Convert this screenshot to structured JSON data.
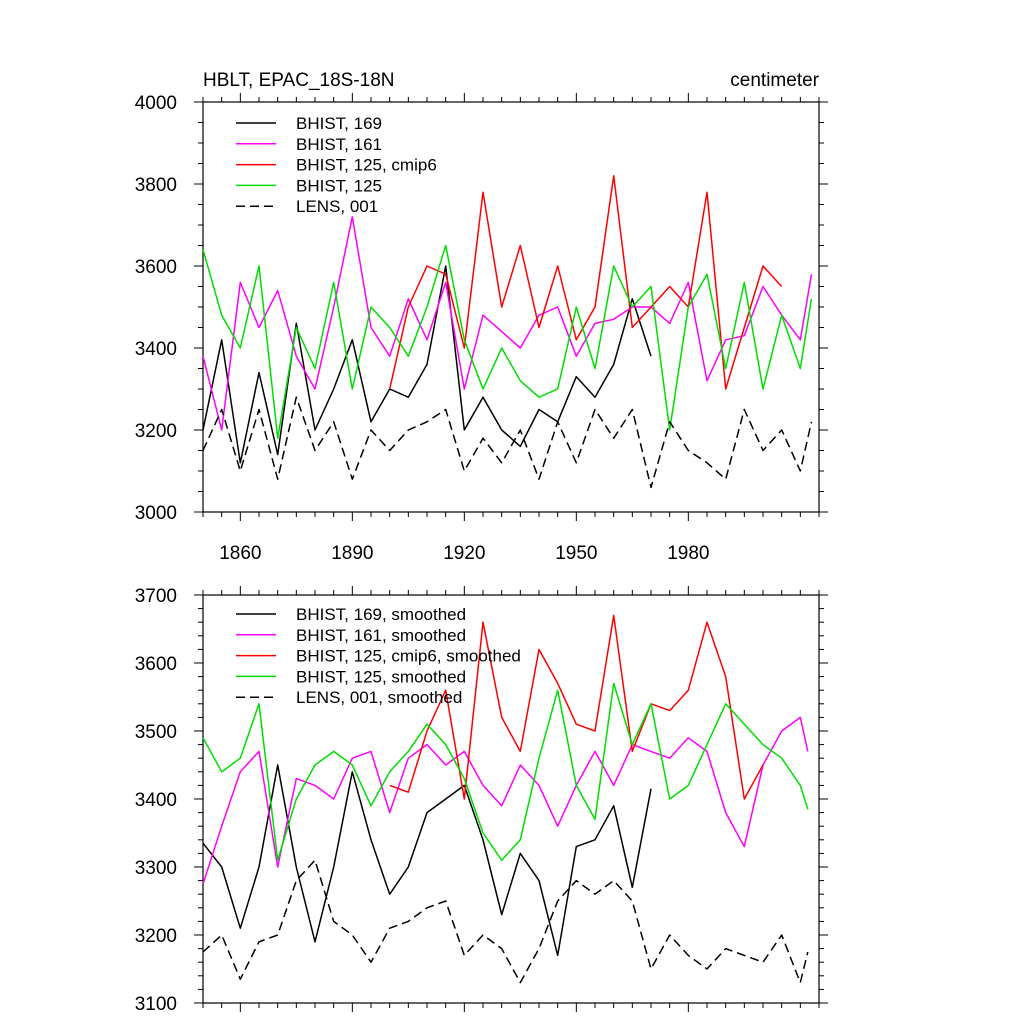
{
  "chart_data": [
    {
      "type": "line",
      "title": "HBLT, EPAC_18S-18N",
      "units_label": "centimeter",
      "xlim": [
        1850,
        2015
      ],
      "ylim": [
        3000,
        4000
      ],
      "x_major_ticks": [
        1860,
        1890,
        1920,
        1950,
        1980
      ],
      "y_major_ticks": [
        3000,
        3200,
        3400,
        3600,
        3800,
        4000
      ],
      "tick_labels_x": [
        "1860",
        "1890",
        "1920",
        "1950",
        "1980"
      ],
      "tick_labels_y": [
        "3000",
        "3200",
        "3400",
        "3600",
        "3800",
        "4000"
      ],
      "legend_position": "top-left",
      "series": [
        {
          "name": "BHIST, 169",
          "color": "#000000",
          "dash": "solid",
          "x": [
            1850,
            1855,
            1860,
            1865,
            1870,
            1875,
            1880,
            1885,
            1890,
            1895,
            1900,
            1905,
            1910,
            1915,
            1920,
            1925,
            1930,
            1935,
            1940,
            1945,
            1950,
            1955,
            1960,
            1965,
            1970
          ],
          "values": [
            3200,
            3420,
            3120,
            3340,
            3140,
            3460,
            3200,
            3300,
            3420,
            3220,
            3300,
            3280,
            3360,
            3600,
            3200,
            3280,
            3200,
            3160,
            3250,
            3220,
            3330,
            3280,
            3360,
            3520,
            3380
          ]
        },
        {
          "name": "BHIST, 161",
          "color": "#ff00ff",
          "dash": "solid",
          "x": [
            1850,
            1855,
            1860,
            1865,
            1870,
            1875,
            1880,
            1885,
            1890,
            1895,
            1900,
            1905,
            1910,
            1915,
            1920,
            1925,
            1930,
            1935,
            1940,
            1945,
            1950,
            1955,
            1960,
            1965,
            1970,
            1975,
            1980,
            1985,
            1990,
            1995,
            2000,
            2005,
            2010,
            2013
          ],
          "values": [
            3380,
            3200,
            3560,
            3450,
            3540,
            3380,
            3300,
            3500,
            3720,
            3450,
            3380,
            3520,
            3420,
            3560,
            3300,
            3480,
            3440,
            3400,
            3480,
            3500,
            3380,
            3460,
            3470,
            3500,
            3500,
            3460,
            3560,
            3320,
            3420,
            3430,
            3550,
            3480,
            3420,
            3580
          ]
        },
        {
          "name": "BHIST, 125, cmip6",
          "color": "#ff0000",
          "dash": "solid",
          "x": [
            1900,
            1905,
            1910,
            1915,
            1920,
            1925,
            1930,
            1935,
            1940,
            1945,
            1950,
            1955,
            1960,
            1965,
            1970,
            1975,
            1980,
            1985,
            1990,
            1995,
            2000,
            2005
          ],
          "values": [
            3300,
            3500,
            3600,
            3580,
            3400,
            3780,
            3500,
            3650,
            3450,
            3600,
            3420,
            3500,
            3820,
            3450,
            3500,
            3550,
            3500,
            3780,
            3300,
            3450,
            3600,
            3550
          ]
        },
        {
          "name": "BHIST, 125",
          "color": "#00dd00",
          "dash": "solid",
          "x": [
            1850,
            1855,
            1860,
            1865,
            1870,
            1875,
            1880,
            1885,
            1890,
            1895,
            1900,
            1905,
            1910,
            1915,
            1920,
            1925,
            1930,
            1935,
            1940,
            1945,
            1950,
            1955,
            1960,
            1965,
            1970,
            1975,
            1980,
            1985,
            1990,
            1995,
            2000,
            2005,
            2010,
            2013
          ],
          "values": [
            3640,
            3480,
            3400,
            3600,
            3180,
            3450,
            3350,
            3560,
            3300,
            3500,
            3450,
            3380,
            3500,
            3650,
            3420,
            3300,
            3400,
            3320,
            3280,
            3300,
            3500,
            3350,
            3600,
            3500,
            3550,
            3200,
            3500,
            3580,
            3350,
            3560,
            3300,
            3480,
            3350,
            3520
          ]
        },
        {
          "name": "LENS, 001",
          "color": "#000000",
          "dash": "dashed",
          "x": [
            1850,
            1855,
            1860,
            1865,
            1870,
            1875,
            1880,
            1885,
            1890,
            1895,
            1900,
            1905,
            1910,
            1915,
            1920,
            1925,
            1930,
            1935,
            1940,
            1945,
            1950,
            1955,
            1960,
            1965,
            1970,
            1975,
            1980,
            1985,
            1990,
            1995,
            2000,
            2005,
            2010,
            2013
          ],
          "values": [
            3150,
            3250,
            3100,
            3250,
            3080,
            3280,
            3150,
            3220,
            3080,
            3200,
            3150,
            3200,
            3220,
            3250,
            3100,
            3180,
            3120,
            3200,
            3080,
            3220,
            3120,
            3250,
            3180,
            3250,
            3060,
            3220,
            3150,
            3120,
            3080,
            3250,
            3150,
            3200,
            3100,
            3220
          ]
        }
      ]
    },
    {
      "type": "line",
      "title": "",
      "xlim": [
        1850,
        2015
      ],
      "ylim": [
        3100,
        3700
      ],
      "x_major_ticks": [
        1860,
        1890,
        1920,
        1950,
        1980
      ],
      "y_major_ticks": [
        3100,
        3200,
        3300,
        3400,
        3500,
        3600,
        3700
      ],
      "tick_labels_y": [
        "3100",
        "3200",
        "3300",
        "3400",
        "3500",
        "3600",
        "3700"
      ],
      "legend_position": "top-left",
      "series": [
        {
          "name": "BHIST, 169, smoothed",
          "color": "#000000",
          "dash": "solid",
          "x": [
            1850,
            1855,
            1860,
            1865,
            1870,
            1875,
            1880,
            1885,
            1890,
            1895,
            1900,
            1905,
            1910,
            1915,
            1920,
            1925,
            1930,
            1935,
            1940,
            1945,
            1950,
            1955,
            1960,
            1965,
            1970
          ],
          "values": [
            3335,
            3300,
            3210,
            3300,
            3450,
            3300,
            3190,
            3300,
            3440,
            3340,
            3260,
            3300,
            3380,
            3400,
            3420,
            3340,
            3230,
            3320,
            3280,
            3170,
            3330,
            3340,
            3390,
            3270,
            3415
          ]
        },
        {
          "name": "BHIST, 161, smoothed",
          "color": "#ff00ff",
          "dash": "solid",
          "x": [
            1850,
            1855,
            1860,
            1865,
            1870,
            1875,
            1880,
            1885,
            1890,
            1895,
            1900,
            1905,
            1910,
            1915,
            1920,
            1925,
            1930,
            1935,
            1940,
            1945,
            1950,
            1955,
            1960,
            1965,
            1970,
            1975,
            1980,
            1985,
            1990,
            1995,
            2000,
            2005,
            2010,
            2012
          ],
          "values": [
            3275,
            3360,
            3440,
            3470,
            3300,
            3430,
            3420,
            3400,
            3460,
            3470,
            3380,
            3460,
            3480,
            3450,
            3470,
            3420,
            3390,
            3450,
            3420,
            3360,
            3420,
            3470,
            3420,
            3480,
            3470,
            3460,
            3490,
            3470,
            3380,
            3330,
            3450,
            3500,
            3520,
            3470
          ]
        },
        {
          "name": "BHIST, 125, cmip6, smoothed",
          "color": "#ff0000",
          "dash": "solid",
          "x": [
            1900,
            1905,
            1910,
            1915,
            1920,
            1925,
            1930,
            1935,
            1940,
            1945,
            1950,
            1955,
            1960,
            1965,
            1970,
            1975,
            1980,
            1985,
            1990,
            1995,
            2000
          ],
          "values": [
            3420,
            3410,
            3500,
            3560,
            3400,
            3660,
            3520,
            3470,
            3620,
            3570,
            3510,
            3500,
            3670,
            3470,
            3540,
            3530,
            3560,
            3660,
            3580,
            3400,
            3450
          ]
        },
        {
          "name": "BHIST, 125, smoothed",
          "color": "#00dd00",
          "dash": "solid",
          "x": [
            1850,
            1855,
            1860,
            1865,
            1870,
            1875,
            1880,
            1885,
            1890,
            1895,
            1900,
            1905,
            1910,
            1915,
            1920,
            1925,
            1930,
            1935,
            1940,
            1945,
            1950,
            1955,
            1960,
            1965,
            1970,
            1975,
            1980,
            1985,
            1990,
            1995,
            2000,
            2005,
            2010,
            2012
          ],
          "values": [
            3490,
            3440,
            3460,
            3540,
            3310,
            3400,
            3450,
            3470,
            3450,
            3390,
            3440,
            3470,
            3510,
            3480,
            3430,
            3350,
            3310,
            3340,
            3460,
            3560,
            3420,
            3370,
            3570,
            3480,
            3540,
            3400,
            3420,
            3480,
            3540,
            3510,
            3480,
            3460,
            3420,
            3385
          ]
        },
        {
          "name": "LENS, 001, smoothed",
          "color": "#000000",
          "dash": "dashed",
          "x": [
            1850,
            1855,
            1860,
            1865,
            1870,
            1875,
            1880,
            1885,
            1890,
            1895,
            1900,
            1905,
            1910,
            1915,
            1920,
            1925,
            1930,
            1935,
            1940,
            1945,
            1950,
            1955,
            1960,
            1965,
            1970,
            1975,
            1980,
            1985,
            1990,
            1995,
            2000,
            2005,
            2010,
            2012
          ],
          "values": [
            3175,
            3200,
            3135,
            3190,
            3200,
            3280,
            3310,
            3220,
            3200,
            3160,
            3210,
            3220,
            3240,
            3250,
            3170,
            3200,
            3180,
            3130,
            3180,
            3250,
            3280,
            3260,
            3280,
            3250,
            3150,
            3200,
            3170,
            3150,
            3180,
            3170,
            3160,
            3200,
            3130,
            3175
          ]
        }
      ]
    }
  ]
}
